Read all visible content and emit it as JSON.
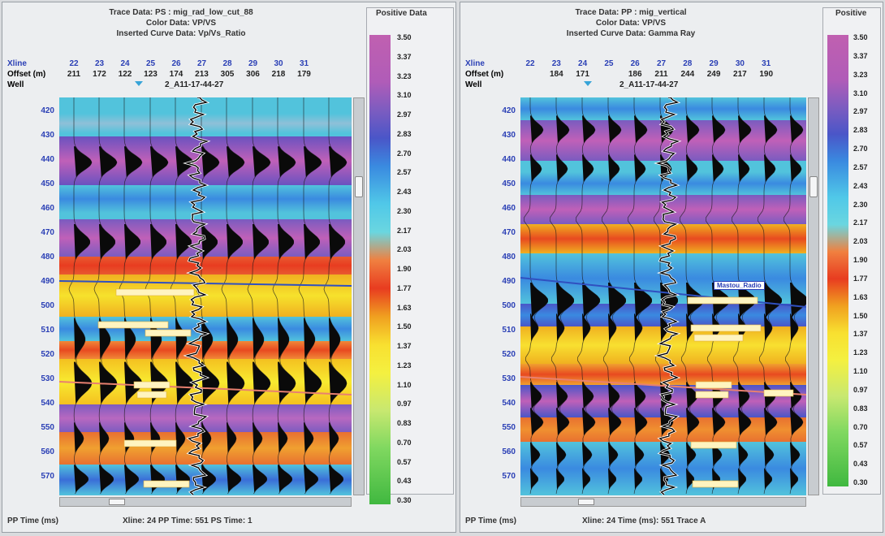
{
  "left": {
    "header": [
      "Trace Data: PS : mig_rad_low_cut_88",
      "Color Data: VP/VS",
      "Inserted Curve Data: Vp/Vs_Ratio"
    ],
    "xline_label": "Xline",
    "offset_label": "Offset (m)",
    "well_label": "Well",
    "xlines": [
      "22",
      "23",
      "24",
      "25",
      "26",
      "27",
      "28",
      "29",
      "30",
      "31"
    ],
    "offsets": [
      "211",
      "172",
      "122",
      "123",
      "174",
      "213",
      "305",
      "306",
      "218",
      "179"
    ],
    "well_name": "2_A11-17-44-27",
    "times": [
      "420",
      "430",
      "440",
      "450",
      "460",
      "470",
      "480",
      "490",
      "500",
      "510",
      "520",
      "530",
      "540",
      "550",
      "560",
      "570"
    ],
    "legend_title": "Positive Data",
    "legend_values": [
      "3.50",
      "3.37",
      "3.23",
      "3.10",
      "2.97",
      "2.83",
      "2.70",
      "2.57",
      "2.43",
      "2.30",
      "2.17",
      "2.03",
      "1.90",
      "1.77",
      "1.63",
      "1.50",
      "1.37",
      "1.23",
      "1.10",
      "0.97",
      "0.83",
      "0.70",
      "0.57",
      "0.43",
      "0.30"
    ],
    "axis_label": "PP Time (ms)",
    "status": "Xline: 24   PP Time: 551   PS Time: 1"
  },
  "right": {
    "header": [
      "Trace Data: PP : mig_vertical",
      "Color Data: VP/VS",
      "Inserted Curve Data: Gamma Ray"
    ],
    "xline_label": "Xline",
    "offset_label": "Offset (m)",
    "well_label": "Well",
    "xlines": [
      "22",
      "23",
      "24",
      "25",
      "26",
      "27",
      "28",
      "29",
      "30",
      "31"
    ],
    "offsets": [
      "",
      "184",
      "171",
      "",
      "186",
      "211",
      "244",
      "249",
      "217",
      "190"
    ],
    "well_name": "2_A11-17-44-27",
    "times": [
      "420",
      "430",
      "440",
      "450",
      "460",
      "470",
      "480",
      "490",
      "500",
      "510",
      "520",
      "530",
      "540",
      "550",
      "560",
      "570"
    ],
    "legend_title": "Positive",
    "legend_values": [
      "3.50",
      "3.37",
      "3.23",
      "3.10",
      "2.97",
      "2.83",
      "2.70",
      "2.57",
      "2.43",
      "2.30",
      "2.17",
      "2.03",
      "1.90",
      "1.77",
      "1.63",
      "1.50",
      "1.37",
      "1.23",
      "1.10",
      "0.97",
      "0.83",
      "0.70",
      "0.57",
      "0.43",
      "0.30"
    ],
    "axis_label": "PP Time (ms)",
    "status": "Xline: 24   Time (ms): 551   Trace A",
    "horizon_tag": "Mastou_Radio"
  },
  "icons": {
    "marker": "triangle-marker-icon"
  },
  "colors": {
    "xline": "#2a3fb5",
    "well_log": "#000000"
  }
}
